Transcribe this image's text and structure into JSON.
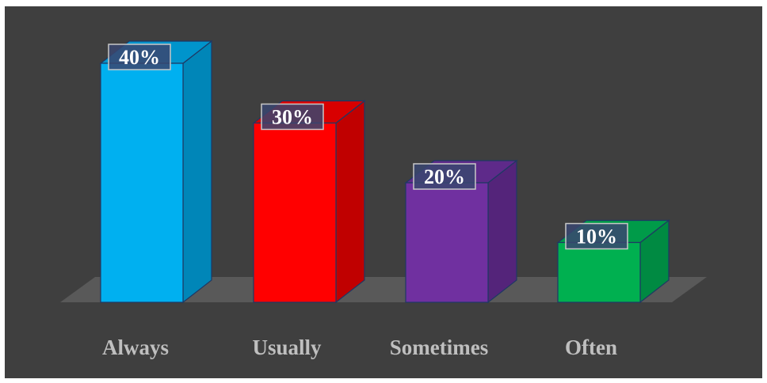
{
  "chart_data": {
    "type": "bar",
    "title": "",
    "xlabel": "",
    "ylabel": "",
    "categories": [
      "Always",
      "Usually",
      "Sometimes",
      "Often"
    ],
    "values": [
      40,
      30,
      20,
      10
    ],
    "data_labels": [
      "40%",
      "30%",
      "20%",
      "10%"
    ],
    "unit": "%",
    "ylim": [
      0,
      40
    ],
    "grid": false,
    "legend": "none",
    "style": "3d-column",
    "colors": {
      "front": [
        "#00b0f0",
        "#ff0000",
        "#7030a0",
        "#00b050"
      ],
      "side": [
        "#0086b8",
        "#c00000",
        "#54247a",
        "#008a42"
      ],
      "top": [
        "#0094cc",
        "#d80000",
        "#5e2a8a",
        "#009b49"
      ],
      "outline": "#1f3864",
      "background": "#3f3f3f",
      "floor": "#595959",
      "label_box_fill": "#3a4670",
      "label_box_border": "#c8c8c8",
      "category_text": "#bfbfbf"
    }
  }
}
